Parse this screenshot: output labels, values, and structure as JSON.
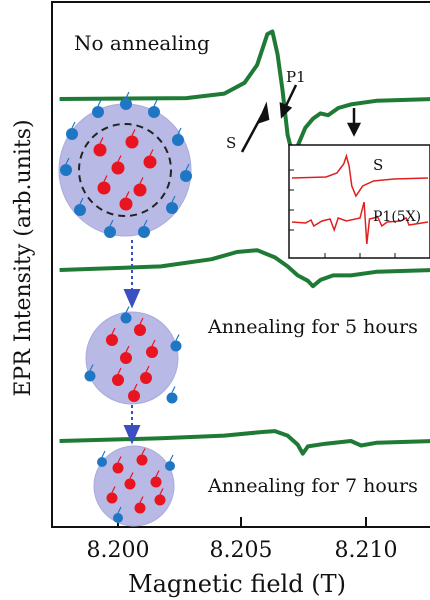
{
  "chart_data": {
    "type": "line",
    "xlabel": "Magnetic field  (T)",
    "ylabel": "EPR Intensity (arb.units)",
    "xlim": [
      8.1967,
      8.2117
    ],
    "x_ticks": [
      8.2,
      8.205,
      8.21
    ],
    "x_tick_labels": [
      "8.200",
      "8.205",
      "8.210"
    ],
    "line_color": "#1e7a35",
    "traces": [
      {
        "label": "No annealing",
        "points": [
          [
            8.197,
            0
          ],
          [
            8.202,
            1
          ],
          [
            8.2035,
            6
          ],
          [
            8.2043,
            18
          ],
          [
            8.2048,
            38
          ],
          [
            8.2052,
            72
          ],
          [
            8.2054,
            75
          ],
          [
            8.2056,
            50
          ],
          [
            8.2058,
            10
          ],
          [
            8.206,
            -40
          ],
          [
            8.2062,
            -62
          ],
          [
            8.2064,
            -52
          ],
          [
            8.2067,
            -32
          ],
          [
            8.207,
            -22
          ],
          [
            8.2073,
            -16
          ],
          [
            8.2076,
            -18
          ],
          [
            8.208,
            -10
          ],
          [
            8.2085,
            -6
          ],
          [
            8.2095,
            -2
          ],
          [
            8.2117,
            0
          ]
        ]
      },
      {
        "label": "Annealing for 5 hours",
        "points": [
          [
            8.197,
            0
          ],
          [
            8.201,
            4
          ],
          [
            8.203,
            12
          ],
          [
            8.204,
            20
          ],
          [
            8.2048,
            22
          ],
          [
            8.2055,
            14
          ],
          [
            8.206,
            4
          ],
          [
            8.2064,
            -6
          ],
          [
            8.2068,
            -12
          ],
          [
            8.207,
            -18
          ],
          [
            8.2073,
            -11
          ],
          [
            8.2078,
            -6
          ],
          [
            8.2085,
            -6
          ],
          [
            8.2095,
            -2
          ],
          [
            8.2117,
            0
          ]
        ]
      },
      {
        "label": "Annealing for 7 hours",
        "points": [
          [
            8.197,
            0
          ],
          [
            8.201,
            3
          ],
          [
            8.2035,
            6
          ],
          [
            8.205,
            10
          ],
          [
            8.2055,
            11
          ],
          [
            8.206,
            6
          ],
          [
            8.2064,
            -4
          ],
          [
            8.2066,
            -14
          ],
          [
            8.2068,
            -6
          ],
          [
            8.2075,
            -3
          ],
          [
            8.2085,
            0
          ],
          [
            8.2089,
            -5
          ],
          [
            8.2095,
            -2
          ],
          [
            8.2117,
            0
          ]
        ]
      }
    ],
    "annotations": {
      "s_label": "S",
      "p1_label": "P1"
    },
    "inset": {
      "line_color": "#e02020",
      "traces": [
        {
          "label": "S",
          "points": [
            [
              0,
              0
            ],
            [
              0.25,
              1
            ],
            [
              0.33,
              5
            ],
            [
              0.38,
              14
            ],
            [
              0.4,
              22
            ],
            [
              0.42,
              12
            ],
            [
              0.44,
              -8
            ],
            [
              0.47,
              -18
            ],
            [
              0.52,
              -8
            ],
            [
              0.6,
              -3
            ],
            [
              0.75,
              -1
            ],
            [
              1,
              0
            ]
          ]
        },
        {
          "label": "P1(5X)",
          "points": [
            [
              0,
              0
            ],
            [
              0.1,
              -1
            ],
            [
              0.14,
              2
            ],
            [
              0.16,
              -4
            ],
            [
              0.22,
              1
            ],
            [
              0.28,
              3
            ],
            [
              0.31,
              -8
            ],
            [
              0.34,
              4
            ],
            [
              0.4,
              1
            ],
            [
              0.5,
              4
            ],
            [
              0.53,
              20
            ],
            [
              0.55,
              -22
            ],
            [
              0.57,
              3
            ],
            [
              0.63,
              5
            ],
            [
              0.66,
              -4
            ],
            [
              0.7,
              0
            ],
            [
              0.8,
              1
            ],
            [
              0.84,
              4
            ],
            [
              0.86,
              -3
            ],
            [
              1,
              0
            ]
          ]
        }
      ]
    }
  },
  "legend_colors": {
    "outer_atom": "#1f77c4",
    "inner_atom": "#e8141f",
    "particle_fill": "#b9b9e6"
  }
}
